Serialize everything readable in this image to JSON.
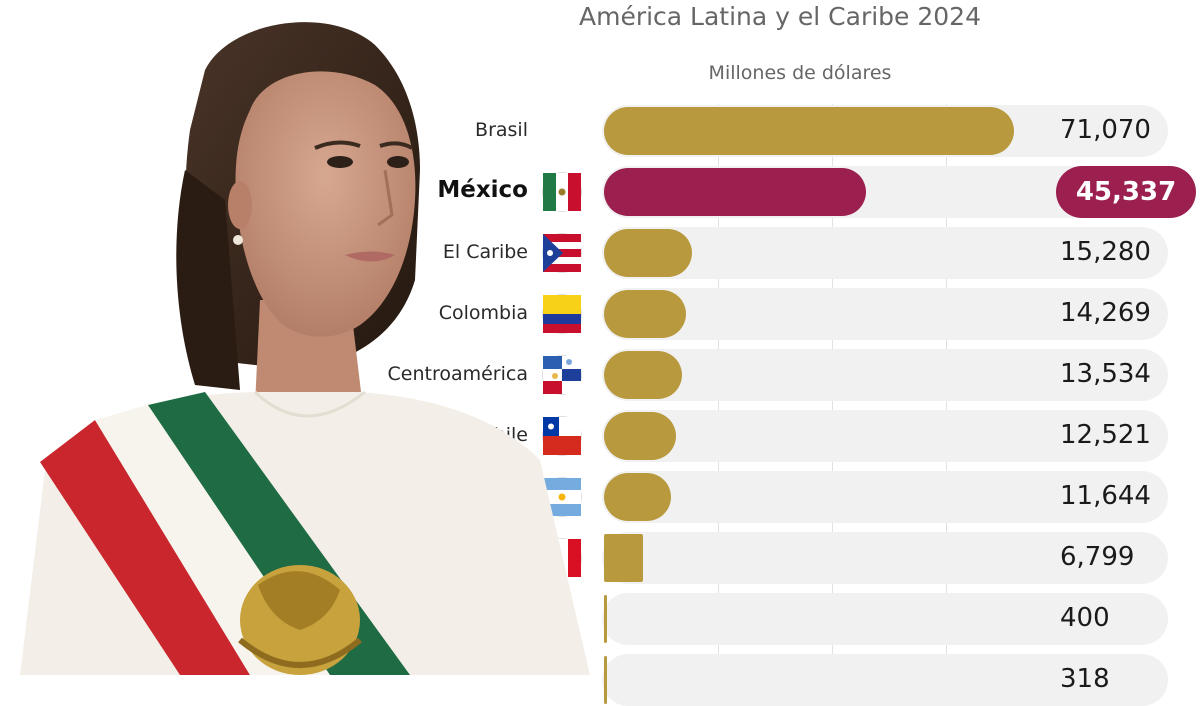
{
  "title": "América Latina y el Caribe 2024",
  "subtitle": "Millones de dólares",
  "colors": {
    "bar": "#b8993e",
    "highlight": "#9b2050",
    "track": "#f1f1f1"
  },
  "chart_data": {
    "type": "bar",
    "orientation": "horizontal",
    "title": "América Latina y el Caribe 2024",
    "subtitle": "Millones de dólares",
    "categories": [
      "Brasil",
      "México",
      "El Caribe",
      "Colombia",
      "Centroamérica",
      "Chile",
      "",
      "",
      "",
      ""
    ],
    "values": [
      71070,
      45337,
      15280,
      14269,
      13534,
      12521,
      11644,
      6799,
      400,
      318
    ],
    "value_labels": [
      "71,070",
      "45,337",
      "15,280",
      "14,269",
      "13,534",
      "12,521",
      "11,644",
      "6,799",
      "400",
      "318"
    ],
    "flags": [
      "",
      "mexico-flag",
      "caribbean-flag",
      "colombia-flag",
      "central-america-flag",
      "chile-flag",
      "argentina-flag",
      "peru-flag",
      "",
      ""
    ],
    "highlight_index": 1,
    "xlim": [
      0,
      75000
    ],
    "grid": true
  }
}
